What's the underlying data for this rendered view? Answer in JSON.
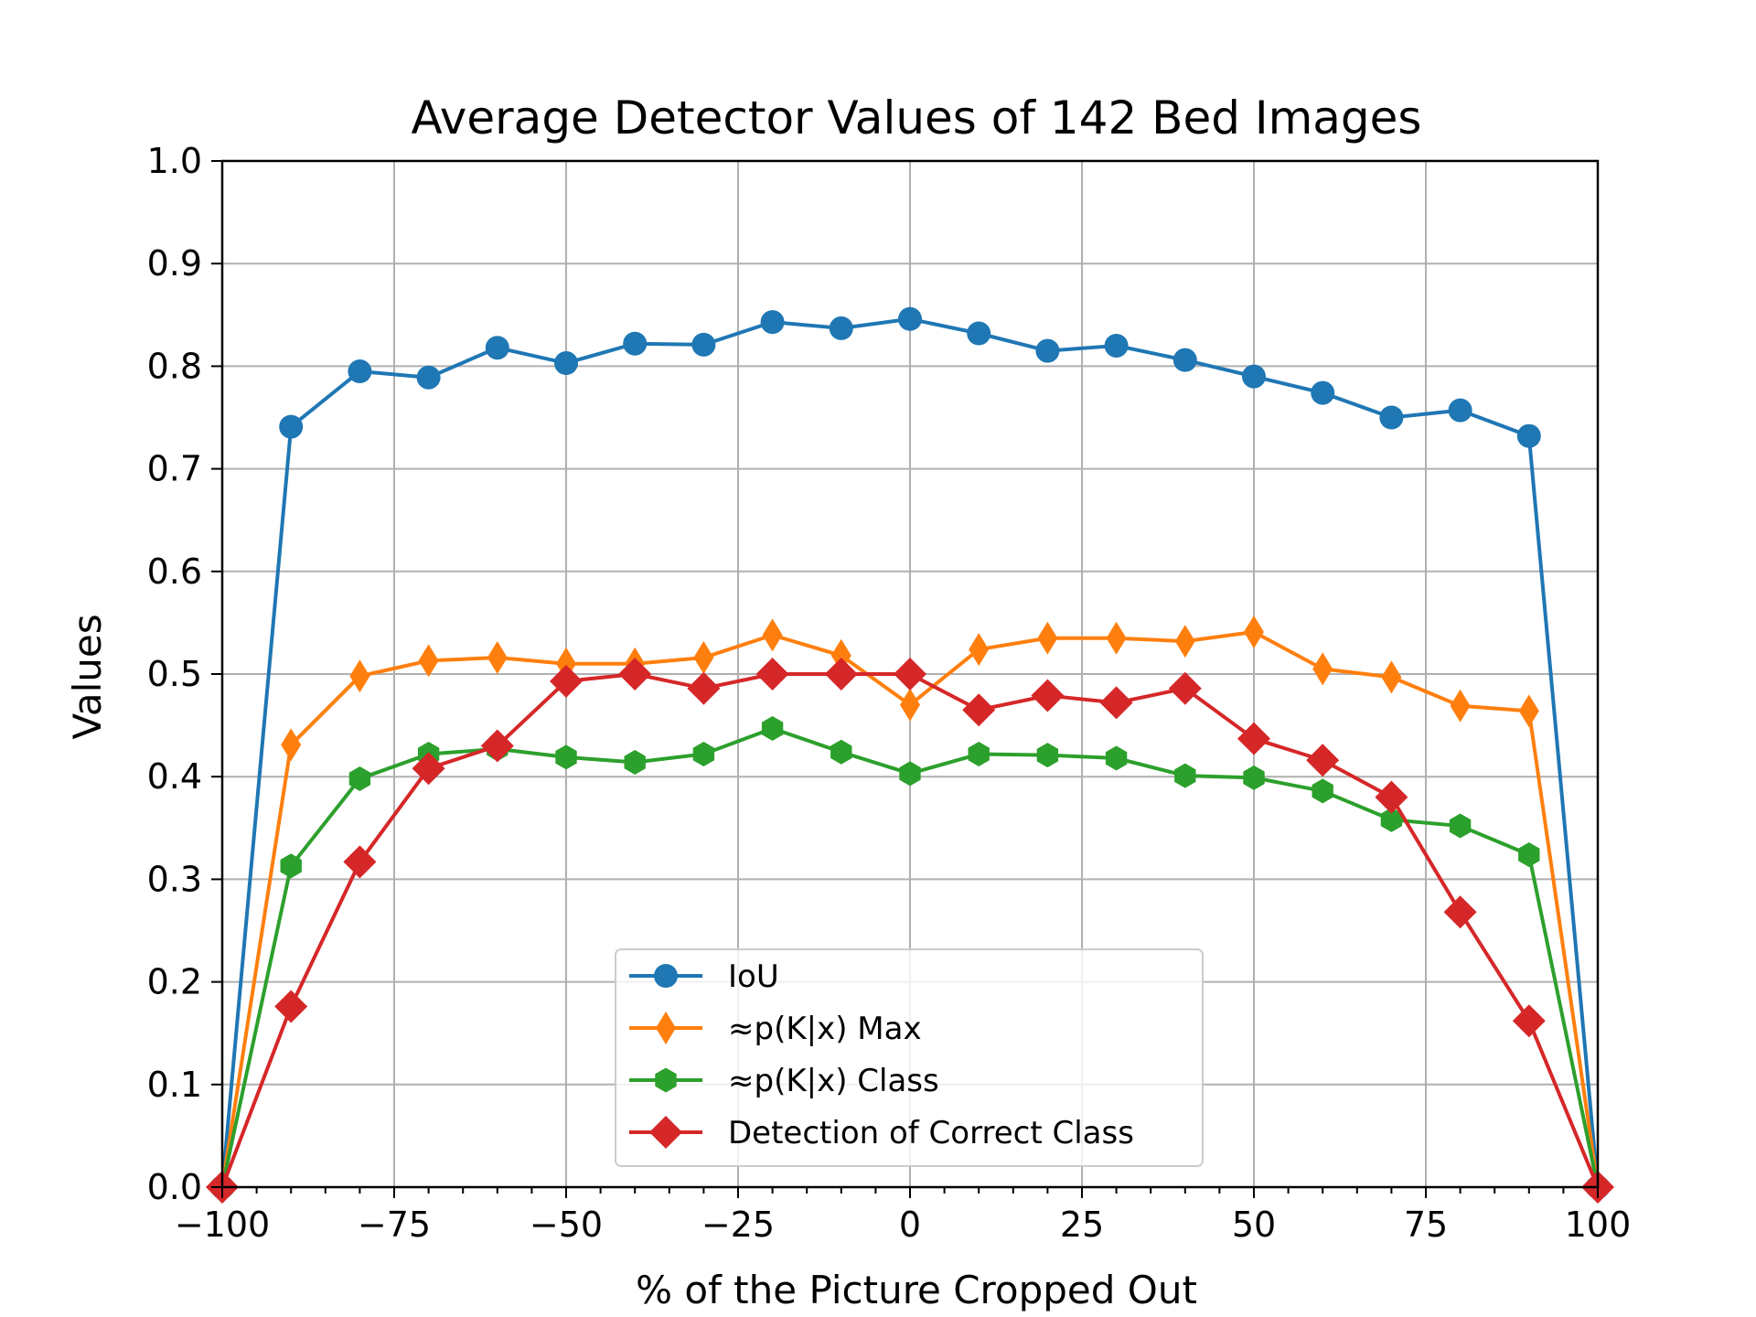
{
  "chart_data": {
    "type": "line",
    "title": "Average Detector Values of 142 Bed Images",
    "xlabel": "% of the Picture Cropped Out",
    "ylabel": "Values",
    "xlim": [
      -100,
      100
    ],
    "ylim": [
      0.0,
      1.0
    ],
    "xticks": [
      -100,
      -75,
      -50,
      -25,
      0,
      25,
      50,
      75,
      100
    ],
    "xtick_labels": [
      "−100",
      "−75",
      "−50",
      "−25",
      "0",
      "25",
      "50",
      "75",
      "100"
    ],
    "yticks": [
      0.0,
      0.1,
      0.2,
      0.3,
      0.4,
      0.5,
      0.6,
      0.7,
      0.8,
      0.9,
      1.0
    ],
    "ytick_labels": [
      "0.0",
      "0.1",
      "0.2",
      "0.3",
      "0.4",
      "0.5",
      "0.6",
      "0.7",
      "0.8",
      "0.9",
      "1.0"
    ],
    "grid": true,
    "legend_position": "lower-center",
    "x": [
      -100,
      -90,
      -80,
      -70,
      -60,
      -50,
      -40,
      -30,
      -20,
      -10,
      0,
      10,
      20,
      30,
      40,
      50,
      60,
      70,
      80,
      90,
      100
    ],
    "series": [
      {
        "name": "IoU",
        "color": "#1f77b4",
        "marker": "circle",
        "values": [
          0.0,
          0.741,
          0.795,
          0.789,
          0.818,
          0.803,
          0.822,
          0.821,
          0.843,
          0.837,
          0.846,
          0.832,
          0.815,
          0.82,
          0.806,
          0.79,
          0.774,
          0.75,
          0.757,
          0.732,
          0.0
        ]
      },
      {
        "name": "≈p(K|x) Max",
        "color": "#ff7f0e",
        "marker": "thin-diamond",
        "values": [
          0.0,
          0.431,
          0.498,
          0.513,
          0.516,
          0.51,
          0.51,
          0.516,
          0.538,
          0.518,
          0.47,
          0.524,
          0.535,
          0.535,
          0.532,
          0.541,
          0.505,
          0.497,
          0.469,
          0.464,
          0.0
        ]
      },
      {
        "name": "≈p(K|x) Class",
        "color": "#2ca02c",
        "marker": "hexagon",
        "values": [
          0.0,
          0.313,
          0.398,
          0.422,
          0.427,
          0.419,
          0.414,
          0.422,
          0.447,
          0.424,
          0.403,
          0.422,
          0.421,
          0.418,
          0.401,
          0.399,
          0.386,
          0.358,
          0.352,
          0.324,
          0.0
        ]
      },
      {
        "name": "Detection of Correct Class",
        "color": "#d62728",
        "marker": "diamond",
        "values": [
          0.0,
          0.176,
          0.317,
          0.408,
          0.43,
          0.493,
          0.5,
          0.486,
          0.5,
          0.5,
          0.5,
          0.465,
          0.479,
          0.472,
          0.486,
          0.437,
          0.416,
          0.38,
          0.268,
          0.162,
          0.0
        ]
      }
    ]
  }
}
